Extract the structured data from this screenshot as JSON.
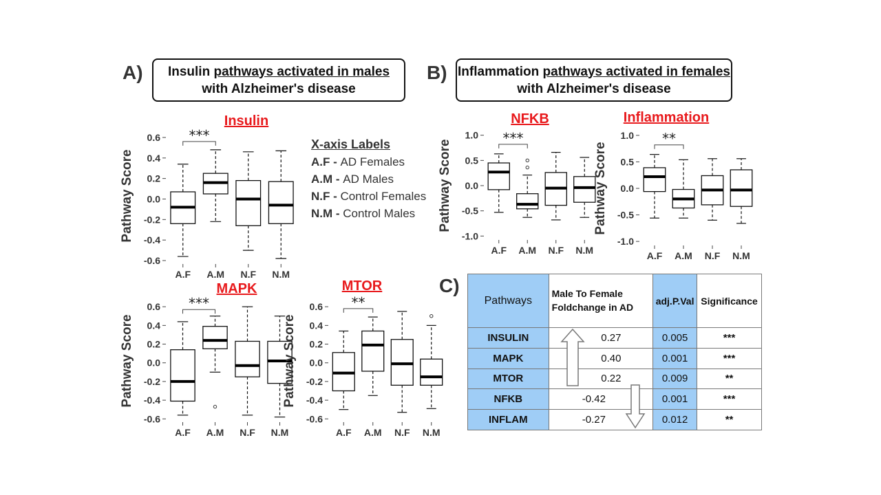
{
  "panel_a": {
    "letter": "A)",
    "title_line1_pre": "Insulin ",
    "title_line1_ul": "pathways activated in males",
    "title_line2": "with Alzheimer's disease"
  },
  "panel_b": {
    "letter": "B)",
    "title_line1_pre": "Inflammation ",
    "title_line1_ul": "pathways activated in females",
    "title_line2": "with Alzheimer's disease"
  },
  "panel_c": {
    "letter": "C)"
  },
  "legend": {
    "heading": "X-axis Labels",
    "items": [
      {
        "code": "A.F",
        "sep": " - ",
        "text": "AD Females"
      },
      {
        "code": "A.M",
        "sep": " - ",
        "text": "AD Males"
      },
      {
        "code": "N.F",
        "sep": " - ",
        "text": "Control Females"
      },
      {
        "code": "N.M",
        "sep": " - ",
        "text": "Control Males"
      }
    ]
  },
  "colors": {
    "title_red": "#e8191c",
    "table_blue": "#9fcdf6",
    "box_stroke": "#111111"
  },
  "chart_data": [
    {
      "type": "boxplot",
      "title": "Insulin",
      "ylabel": "Pathway Score",
      "categories": [
        "A.F",
        "A.M",
        "N.F",
        "N.M"
      ],
      "ylim": [
        -0.62,
        0.68
      ],
      "yticks": [
        -0.6,
        -0.4,
        -0.2,
        0.0,
        0.2,
        0.4,
        0.6
      ],
      "ytick_labels": [
        "-0.6",
        "-0.4",
        "-0.2",
        "0.0",
        "0.2",
        "0.4",
        "0.6"
      ],
      "boxes": [
        {
          "min": -0.56,
          "q1": -0.24,
          "median": -0.08,
          "q3": 0.07,
          "max": 0.34,
          "outliers": []
        },
        {
          "min": -0.22,
          "q1": 0.05,
          "median": 0.16,
          "q3": 0.25,
          "max": 0.48,
          "outliers": []
        },
        {
          "min": -0.5,
          "q1": -0.26,
          "median": 0.0,
          "q3": 0.18,
          "max": 0.46,
          "outliers": []
        },
        {
          "min": -0.58,
          "q1": -0.24,
          "median": -0.06,
          "q3": 0.17,
          "max": 0.47,
          "outliers": []
        }
      ],
      "significance": {
        "from": 0,
        "to": 1,
        "label": "***",
        "y": 0.56
      }
    },
    {
      "type": "boxplot",
      "title": "MAPK",
      "ylabel": "Pathway Score",
      "categories": [
        "A.F",
        "A.M",
        "N.F",
        "N.M"
      ],
      "ylim": [
        -0.62,
        0.66
      ],
      "yticks": [
        -0.6,
        -0.4,
        -0.2,
        0.0,
        0.2,
        0.4,
        0.6
      ],
      "ytick_labels": [
        "-0.6",
        "-0.4",
        "-0.2",
        "0.0",
        "0.2",
        "0.4",
        "0.6"
      ],
      "boxes": [
        {
          "min": -0.56,
          "q1": -0.41,
          "median": -0.2,
          "q3": 0.14,
          "max": 0.44,
          "outliers": []
        },
        {
          "min": -0.1,
          "q1": 0.15,
          "median": 0.24,
          "q3": 0.39,
          "max": 0.5,
          "outliers": [
            -0.47
          ]
        },
        {
          "min": -0.56,
          "q1": -0.15,
          "median": -0.03,
          "q3": 0.23,
          "max": 0.6,
          "outliers": []
        },
        {
          "min": -0.58,
          "q1": -0.22,
          "median": 0.02,
          "q3": 0.23,
          "max": 0.5,
          "outliers": []
        }
      ],
      "significance": {
        "from": 0,
        "to": 1,
        "label": "***",
        "y": 0.57
      }
    },
    {
      "type": "boxplot",
      "title": "MTOR",
      "ylabel": "Pathway Score",
      "categories": [
        "A.F",
        "A.M",
        "N.F",
        "N.M"
      ],
      "ylim": [
        -0.62,
        0.66
      ],
      "yticks": [
        -0.6,
        -0.4,
        -0.2,
        0.0,
        0.2,
        0.4,
        0.6
      ],
      "ytick_labels": [
        "-0.6",
        "-0.4",
        "-0.2",
        "0.0",
        "0.2",
        "0.4",
        "0.6"
      ],
      "boxes": [
        {
          "min": -0.5,
          "q1": -0.3,
          "median": -0.11,
          "q3": 0.11,
          "max": 0.34,
          "outliers": []
        },
        {
          "min": -0.35,
          "q1": -0.09,
          "median": 0.19,
          "q3": 0.34,
          "max": 0.49,
          "outliers": []
        },
        {
          "min": -0.53,
          "q1": -0.24,
          "median": -0.01,
          "q3": 0.25,
          "max": 0.55,
          "outliers": []
        },
        {
          "min": -0.49,
          "q1": -0.24,
          "median": -0.15,
          "q3": 0.04,
          "max": 0.4,
          "outliers": [
            0.5
          ]
        }
      ],
      "significance": {
        "from": 0,
        "to": 1,
        "label": "**",
        "y": 0.58
      }
    },
    {
      "type": "boxplot",
      "title": "NFKB",
      "ylabel": "Pathway Score",
      "categories": [
        "A.F",
        "A.M",
        "N.F",
        "N.M"
      ],
      "ylim": [
        -1.05,
        1.05
      ],
      "yticks": [
        -1.0,
        -0.5,
        0.0,
        0.5,
        1.0
      ],
      "ytick_labels": [
        "-1.0",
        "-0.5",
        "0.0",
        "0.5",
        "1.0"
      ],
      "boxes": [
        {
          "min": -0.53,
          "q1": -0.08,
          "median": 0.27,
          "q3": 0.45,
          "max": 0.63,
          "outliers": []
        },
        {
          "min": -0.63,
          "q1": -0.46,
          "median": -0.37,
          "q3": -0.16,
          "max": 0.21,
          "outliers": [
            0.36,
            0.5
          ]
        },
        {
          "min": -0.68,
          "q1": -0.39,
          "median": -0.05,
          "q3": 0.26,
          "max": 0.66,
          "outliers": []
        },
        {
          "min": -0.63,
          "q1": -0.33,
          "median": -0.04,
          "q3": 0.18,
          "max": 0.56,
          "outliers": []
        }
      ],
      "significance": {
        "from": 0,
        "to": 1,
        "label": "***",
        "y": 0.82
      }
    },
    {
      "type": "boxplot",
      "title": "Inflammation",
      "ylabel": "Pathway Score",
      "categories": [
        "A.F",
        "A.M",
        "N.F",
        "N.M"
      ],
      "ylim": [
        -1.05,
        1.05
      ],
      "yticks": [
        -1.0,
        -0.5,
        0.0,
        0.5,
        1.0
      ],
      "ytick_labels": [
        "-1.0",
        "-0.5",
        "0.0",
        "0.5",
        "1.0"
      ],
      "boxes": [
        {
          "min": -0.56,
          "q1": -0.06,
          "median": 0.22,
          "q3": 0.39,
          "max": 0.64,
          "outliers": []
        },
        {
          "min": -0.56,
          "q1": -0.37,
          "median": -0.2,
          "q3": -0.02,
          "max": 0.54,
          "outliers": []
        },
        {
          "min": -0.6,
          "q1": -0.31,
          "median": -0.03,
          "q3": 0.24,
          "max": 0.56,
          "outliers": []
        },
        {
          "min": -0.66,
          "q1": -0.34,
          "median": -0.03,
          "q3": 0.35,
          "max": 0.56,
          "outliers": []
        }
      ],
      "significance": {
        "from": 0,
        "to": 1,
        "label": "**",
        "y": 0.82
      }
    },
    {
      "type": "table",
      "columns": [
        "Pathways",
        "Male To Female Foldchange in AD",
        "adj.P.Val",
        "Significance"
      ],
      "rows": [
        {
          "pathway": "INSULIN",
          "foldchange": "0.27",
          "adj_p": "0.005",
          "sig": "***"
        },
        {
          "pathway": "MAPK",
          "foldchange": "0.40",
          "adj_p": "0.001",
          "sig": "***"
        },
        {
          "pathway": "MTOR",
          "foldchange": "0.22",
          "adj_p": "0.009",
          "sig": "**"
        },
        {
          "pathway": "NFKB",
          "foldchange": "-0.42",
          "adj_p": "0.001",
          "sig": "***"
        },
        {
          "pathway": "INFLAM",
          "foldchange": "-0.27",
          "adj_p": "0.012",
          "sig": "**"
        }
      ]
    }
  ]
}
